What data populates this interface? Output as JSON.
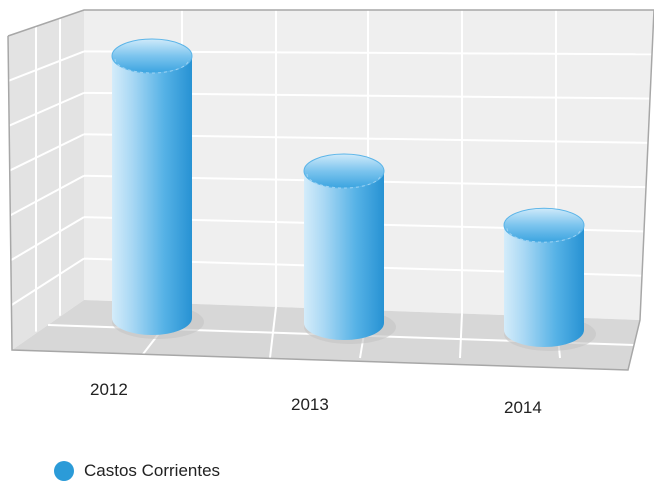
{
  "chart_data": {
    "type": "bar",
    "style": "3d-cylinder",
    "categories": [
      "2012",
      "2013",
      "2014"
    ],
    "series": [
      {
        "name": "Castos Corrientes",
        "values": [
          100,
          58,
          40
        ],
        "color": "#2b9bd8"
      }
    ],
    "ylim": [
      0,
      100
    ],
    "grid": true,
    "legend_position": "bottom-left"
  }
}
